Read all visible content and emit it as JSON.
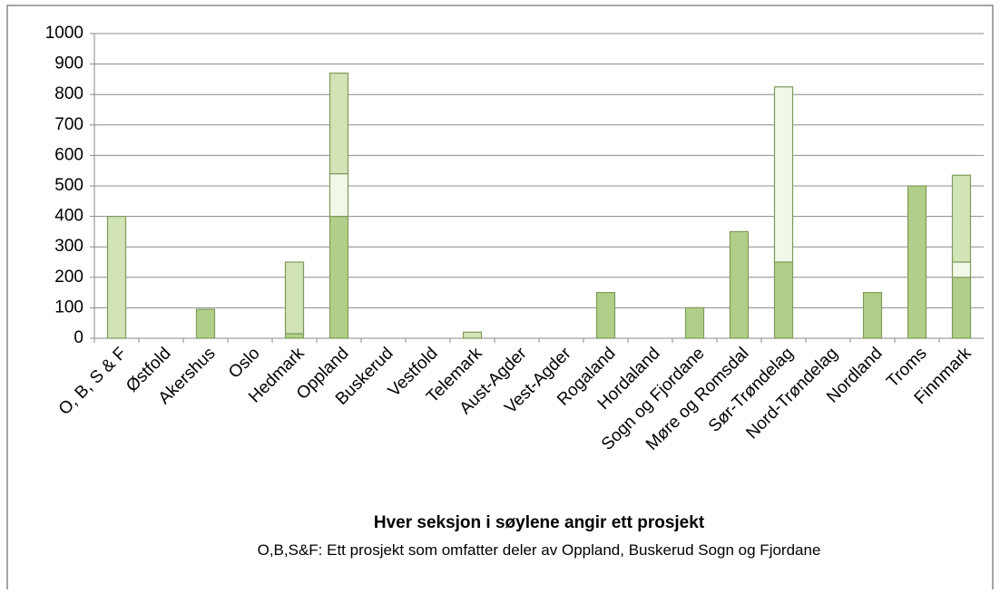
{
  "chart_data": {
    "type": "stacked_bar",
    "categories": [
      "O, B, S & F",
      "Østfold",
      "Akershus",
      "Oslo",
      "Hedmark",
      "Oppland",
      "Buskerud",
      "Vestfold",
      "Telemark",
      "Aust-Agder",
      "Vest-Agder",
      "Rogaland",
      "Hordaland",
      "Sogn og Fjordane",
      "Møre og Romsdal",
      "Sør-Trøndelag",
      "Nord-Trøndelag",
      "Nordland",
      "Troms",
      "Finnmark"
    ],
    "series": [
      {
        "color": "#b2cf8a",
        "values": [
          null,
          null,
          95,
          null,
          15,
          400,
          null,
          null,
          null,
          null,
          null,
          150,
          null,
          100,
          350,
          250,
          null,
          150,
          500,
          200
        ]
      },
      {
        "color": "#f2f8e8",
        "values": [
          null,
          null,
          null,
          null,
          null,
          140,
          null,
          null,
          null,
          null,
          null,
          null,
          null,
          null,
          null,
          575,
          null,
          null,
          null,
          50
        ]
      },
      {
        "color": "#d2e3b6",
        "values": [
          400,
          null,
          null,
          null,
          235,
          330,
          null,
          null,
          20,
          null,
          null,
          null,
          null,
          null,
          null,
          null,
          null,
          null,
          null,
          285
        ]
      }
    ],
    "ylim": [
      0,
      1000
    ],
    "yticks": [
      0,
      100,
      200,
      300,
      400,
      500,
      600,
      700,
      800,
      900,
      1000
    ],
    "grid": true,
    "xlabel": "Hver seksjon i søylene angir ett prosjekt",
    "note": "O,B,S&F: Ett prosjekt som omfatter deler av Oppland, Buskerud  Sogn og Fjordane"
  }
}
